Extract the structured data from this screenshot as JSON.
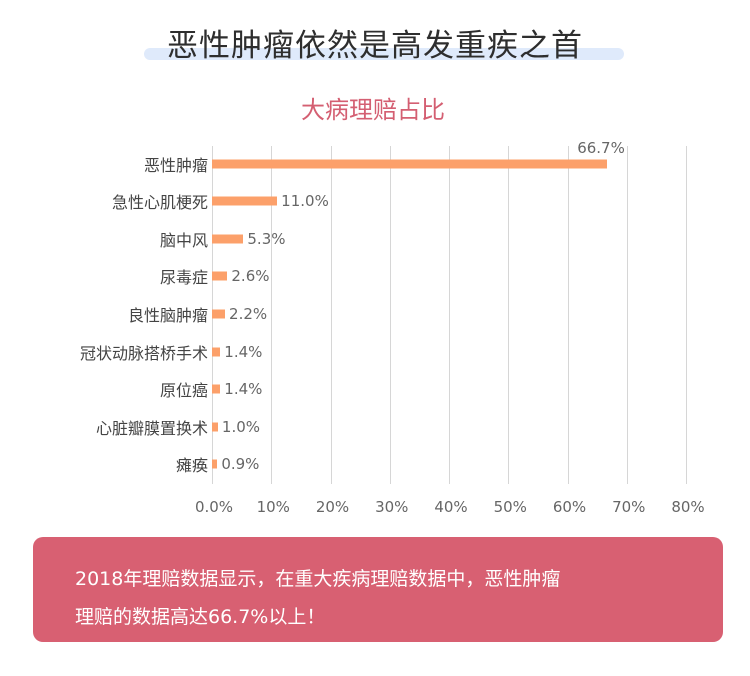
{
  "header": {
    "title": "恶性肿瘤依然是高发重疾之首"
  },
  "colors": {
    "title_highlight": "#dfeafb",
    "chart_title": "#d45f72",
    "bar": "#fca06a",
    "gridline": "#d6d6d6",
    "info_box": "#d86072"
  },
  "chart_data": {
    "type": "bar",
    "orientation": "horizontal",
    "title": "大病理赔占比",
    "xlabel": "",
    "ylabel": "",
    "categories": [
      "恶性肿瘤",
      "急性心肌梗死",
      "脑中风",
      "尿毒症",
      "良性脑肿瘤",
      "冠状动脉搭桥手术",
      "原位癌",
      "心脏瓣膜置换术",
      "瘫痪"
    ],
    "values": [
      66.7,
      11.0,
      5.3,
      2.6,
      2.2,
      1.4,
      1.4,
      1.0,
      0.9
    ],
    "value_labels": [
      "66.7%",
      "11.0%",
      "5.3%",
      "2.6%",
      "2.2%",
      "1.4%",
      "1.4%",
      "1.0%",
      "0.9%"
    ],
    "xlim": [
      0,
      80
    ],
    "x_ticks": [
      "0.0%",
      "10%",
      "20%",
      "30%",
      "40%",
      "50%",
      "60%",
      "70%",
      "80%"
    ],
    "grid": "vertical",
    "legend": "none"
  },
  "info": {
    "line1": "2018年理赔数据显示，在重大疾病理赔数据中，恶性肿瘤",
    "line2": "理赔的数据高达66.7%以上！"
  }
}
